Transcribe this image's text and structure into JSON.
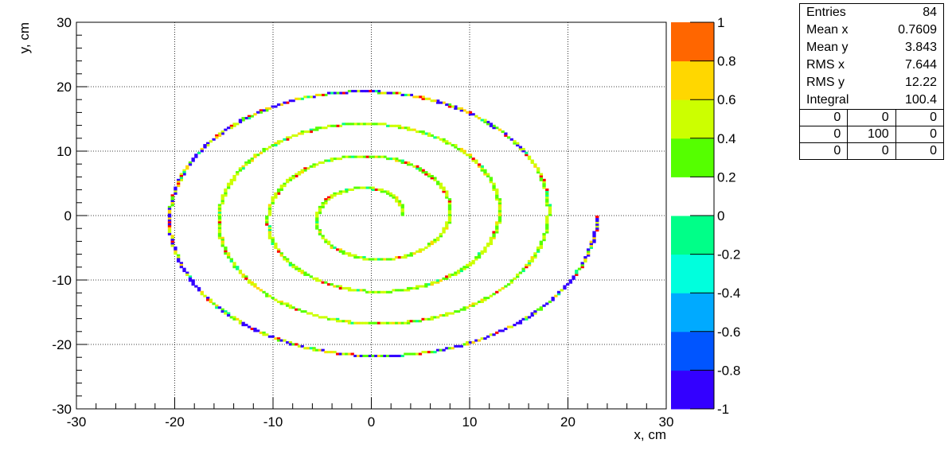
{
  "chart_data": {
    "type": "heatmap",
    "title": "",
    "xlabel": "x, cm",
    "ylabel": "y, cm",
    "xlim": [
      -30,
      30
    ],
    "ylim": [
      -30,
      30
    ],
    "x_ticks": [
      "-30",
      "-20",
      "-10",
      "0",
      "10",
      "20",
      "30"
    ],
    "y_ticks": [
      "-30",
      "-20",
      "-10",
      "0",
      "10",
      "20",
      "30"
    ],
    "grid": true,
    "description_shape": "spiral",
    "spiral": {
      "r_center_cm": 3.0,
      "r_growth_cm_per_turn": 5.0,
      "turns": 4.0,
      "r_max_cm": 23.0
    },
    "palette": {
      "levels": [
        "-1",
        "-0.8",
        "-0.6",
        "-0.4",
        "-0.2",
        "0",
        "0.2",
        "0.4",
        "0.6",
        "0.8",
        "1"
      ],
      "colors": [
        "#3300ff",
        "#0055ff",
        "#00aaff",
        "#00ffdd",
        "#00ff88",
        "#ffffff",
        "#55ff00",
        "#ccff00",
        "#ffd700",
        "#ff6600",
        "#ff0000"
      ]
    },
    "stats": {
      "entries": {
        "label": "Entries",
        "value": "84"
      },
      "mean_x": {
        "label": "Mean x",
        "value": "0.7609"
      },
      "mean_y": {
        "label": "Mean y",
        "value": "3.843"
      },
      "rms_x": {
        "label": "RMS x",
        "value": "7.644"
      },
      "rms_y": {
        "label": "RMS y",
        "value": "12.22"
      },
      "integral": {
        "label": "Integral",
        "value": "100.4"
      },
      "overflow_grid": [
        [
          "0",
          "0",
          "0"
        ],
        [
          "0",
          "100",
          "0"
        ],
        [
          "0",
          "0",
          "0"
        ]
      ]
    }
  }
}
